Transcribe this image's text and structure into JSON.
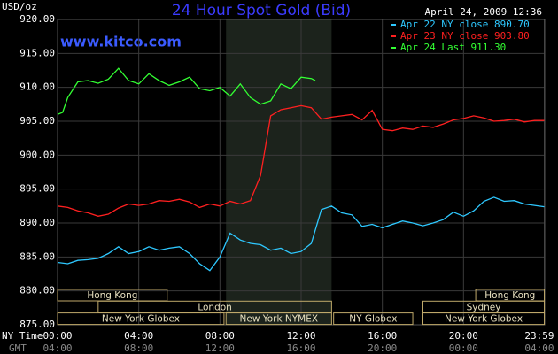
{
  "chart_data": {
    "type": "line",
    "title": "24 Hour Spot Gold (Bid)",
    "ylabel": "USD/oz",
    "timestamp": "April 24, 2009 12:36",
    "source": "www.kitco.com",
    "xlabel": "NY Time",
    "x2label": "GMT",
    "xlim": [
      0,
      24
    ],
    "xticks": [
      {
        "value": 0,
        "label": "00:00"
      },
      {
        "value": 4,
        "label": "04:00"
      },
      {
        "value": 8,
        "label": "08:00"
      },
      {
        "value": 12,
        "label": "12:00"
      },
      {
        "value": 16,
        "label": "16:00"
      },
      {
        "value": 20,
        "label": "20:00"
      },
      {
        "value": 23.98,
        "label": "23:59"
      }
    ],
    "gmt_tick_labels": [
      "04:00",
      "08:00",
      "12:00",
      "16:00",
      "20:00",
      "00:00",
      "04:00"
    ],
    "ylim": [
      875,
      920
    ],
    "yticks": [
      {
        "value": 875,
        "label": "875.00"
      },
      {
        "value": 880,
        "label": "880.00"
      },
      {
        "value": 885,
        "label": "885.00"
      },
      {
        "value": 890,
        "label": "890.00"
      },
      {
        "value": 895,
        "label": "895.00"
      },
      {
        "value": 900,
        "label": "900.00"
      },
      {
        "value": 905,
        "label": "905.00"
      },
      {
        "value": 910,
        "label": "910.00"
      },
      {
        "value": 915,
        "label": "915.00"
      },
      {
        "value": 920,
        "label": "920.00"
      }
    ],
    "grid": true,
    "shaded_span": [
      8.3,
      13.5
    ],
    "sessions": [
      {
        "label": "Hong Kong",
        "row": 0,
        "start": 0,
        "end": 5.4
      },
      {
        "label": "Hong Kong",
        "row": 0,
        "start": 20.6,
        "end": 23.98
      },
      {
        "label": "London",
        "row": 1,
        "start": 2,
        "end": 13.5
      },
      {
        "label": "Sydney",
        "row": 1,
        "start": 18,
        "end": 23.98
      },
      {
        "label": "New York Globex",
        "row": 2,
        "start": 0,
        "end": 8.2
      },
      {
        "label": "New York NYMEX",
        "row": 2,
        "start": 8.3,
        "end": 13.5
      },
      {
        "label": "NY Globex",
        "row": 2,
        "start": 13.6,
        "end": 17.5
      },
      {
        "label": "New York Globex",
        "row": 2,
        "start": 18,
        "end": 23.98
      }
    ],
    "series": [
      {
        "name": "Apr 22 NY close 890.70",
        "color": "#2ec8ff",
        "x": [
          0,
          0.5,
          1,
          1.5,
          2,
          2.5,
          3,
          3.5,
          4,
          4.5,
          5,
          5.5,
          6,
          6.5,
          7,
          7.5,
          8,
          8.5,
          9,
          9.5,
          10,
          10.5,
          11,
          11.5,
          12,
          12.5,
          13,
          13.5,
          14,
          14.5,
          15,
          15.5,
          16,
          16.5,
          17,
          17.5,
          18,
          18.5,
          19,
          19.5,
          20,
          20.5,
          21,
          21.5,
          22,
          22.5,
          23,
          23.5,
          23.98
        ],
        "values": [
          884.2,
          884,
          884.5,
          884.6,
          884.8,
          885.5,
          886.5,
          885.5,
          885.8,
          886.5,
          886,
          886.3,
          886.5,
          885.5,
          884,
          883,
          885,
          888.5,
          887.5,
          887,
          886.8,
          886,
          886.3,
          885.5,
          885.8,
          887,
          892,
          892.5,
          891.5,
          891.2,
          889.5,
          889.8,
          889.3,
          889.8,
          890.3,
          890,
          889.6,
          890,
          890.5,
          891.6,
          891,
          891.8,
          893.2,
          893.8,
          893.2,
          893.3,
          892.8,
          892.6,
          892.4
        ]
      },
      {
        "name": "Apr 23 NY close 903.80",
        "color": "#ff2020",
        "x": [
          0,
          0.5,
          1,
          1.5,
          2,
          2.5,
          3,
          3.5,
          4,
          4.5,
          5,
          5.5,
          6,
          6.5,
          7,
          7.5,
          8,
          8.5,
          9,
          9.5,
          10,
          10.5,
          11,
          11.5,
          12,
          12.5,
          13,
          13.5,
          14,
          14.5,
          15,
          15.5,
          16,
          16.5,
          17,
          17.5,
          18,
          18.5,
          19,
          19.5,
          20,
          20.5,
          21,
          21.5,
          22,
          22.5,
          23,
          23.5,
          23.98
        ],
        "values": [
          892.5,
          892.3,
          891.8,
          891.5,
          891,
          891.3,
          892.2,
          892.8,
          892.6,
          892.8,
          893.3,
          893.2,
          893.5,
          893.1,
          892.3,
          892.8,
          892.5,
          893.2,
          892.8,
          893.3,
          897,
          905.8,
          906.7,
          907,
          907.3,
          907,
          905.3,
          905.6,
          905.8,
          906,
          905.2,
          906.6,
          903.8,
          903.6,
          904,
          903.8,
          904.3,
          904.1,
          904.6,
          905.2,
          905.4,
          905.8,
          905.5,
          905,
          905.1,
          905.3,
          904.9,
          905.1,
          905.1
        ]
      },
      {
        "name": "Apr 24 Last 911.30",
        "color": "#33ff33",
        "x": [
          0,
          0.25,
          0.5,
          1,
          1.5,
          2,
          2.5,
          3,
          3.5,
          4,
          4.5,
          5,
          5.5,
          6,
          6.5,
          7,
          7.5,
          8,
          8.5,
          9,
          9.5,
          10,
          10.5,
          11,
          11.5,
          12,
          12.5,
          12.7
        ],
        "values": [
          906,
          906.3,
          908.5,
          910.8,
          911,
          910.6,
          911.2,
          912.8,
          911,
          910.5,
          912,
          911,
          910.3,
          910.8,
          911.5,
          909.8,
          909.5,
          910,
          908.7,
          910.5,
          908.5,
          907.5,
          908,
          910.5,
          909.8,
          911.5,
          911.3,
          911
        ]
      }
    ]
  }
}
